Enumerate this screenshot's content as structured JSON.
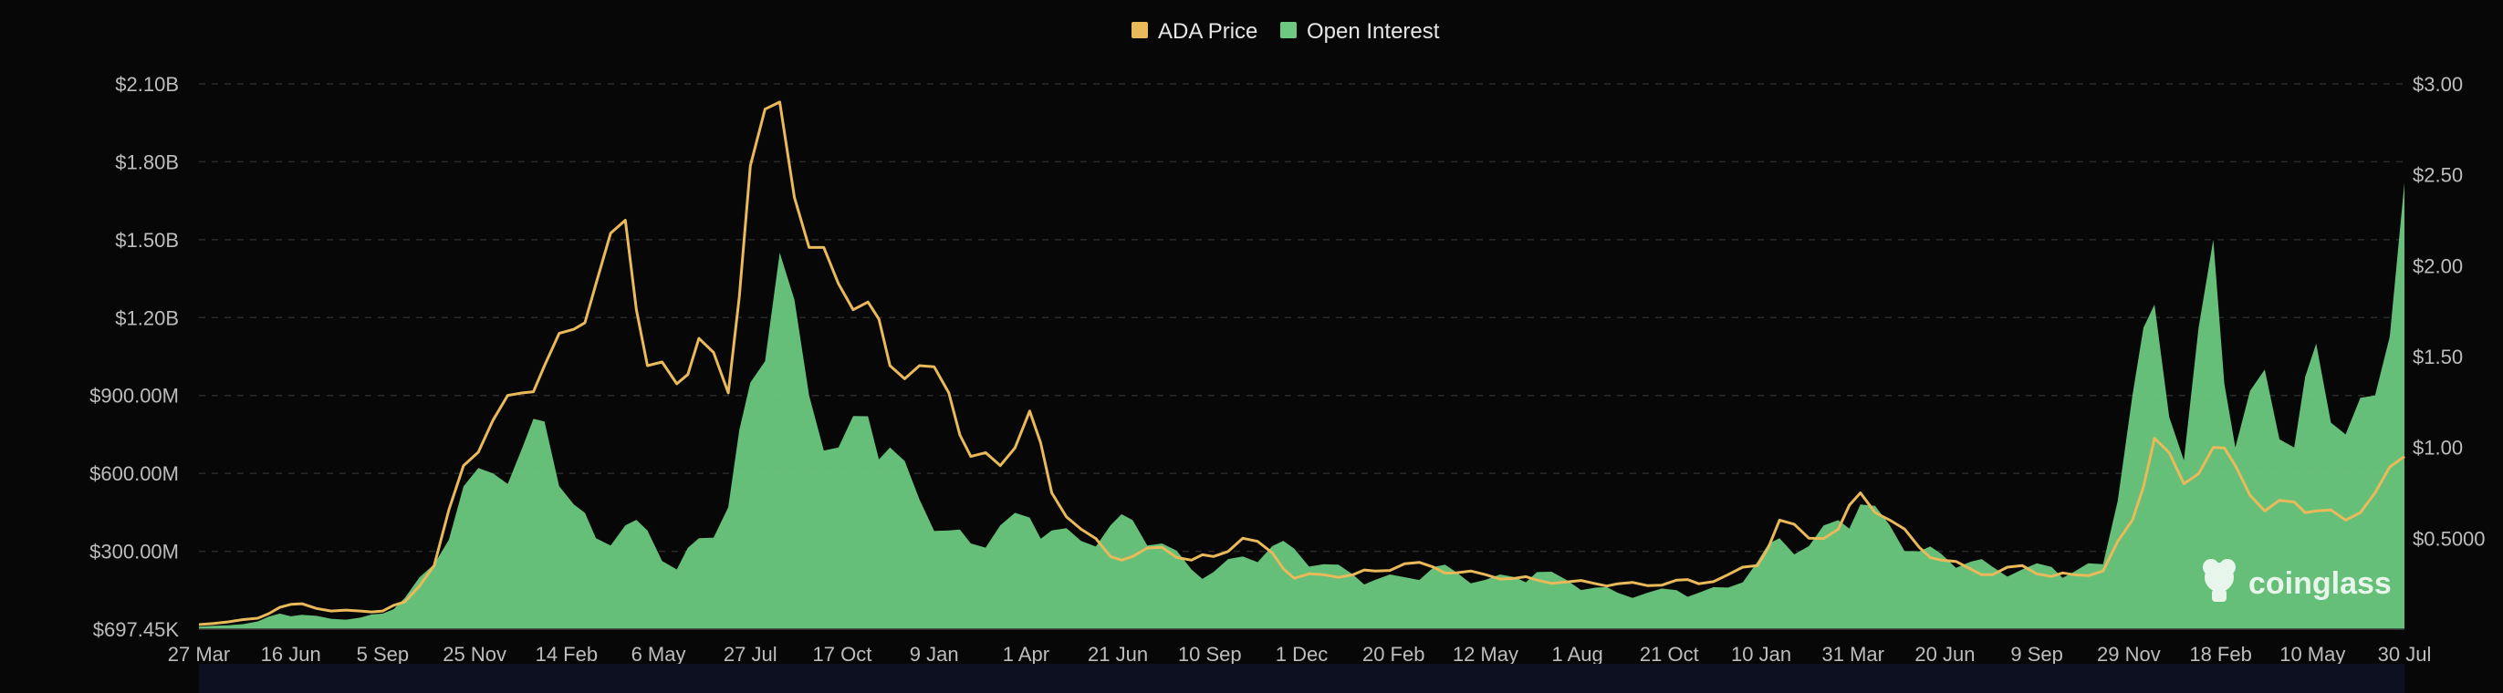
{
  "chart_data": {
    "type": "area",
    "title": "",
    "legend": {
      "placement": "top-center",
      "items": [
        {
          "label": "ADA Price",
          "color": "#e9b95a"
        },
        {
          "label": "Open Interest",
          "color": "#6cc97f"
        }
      ]
    },
    "x_tick_labels": [
      "27 Mar",
      "16 Jun",
      "5 Sep",
      "25 Nov",
      "14 Feb",
      "6 May",
      "27 Jul",
      "17 Oct",
      "9 Jan",
      "1 Apr",
      "21 Jun",
      "10 Sep",
      "1 Dec",
      "20 Feb",
      "12 May",
      "1 Aug",
      "21 Oct",
      "10 Jan",
      "31 Mar",
      "20 Jun",
      "9 Sep",
      "29 Nov",
      "18 Feb",
      "10 May",
      "30 Jul"
    ],
    "y_left": {
      "tick_labels": [
        "$697.45K",
        "$300.00M",
        "$600.00M",
        "$900.00M",
        "$1.20B",
        "$1.50B",
        "$1.80B",
        "$2.10B"
      ],
      "ylim": [
        0,
        2100
      ]
    },
    "y_right": {
      "tick_labels": [
        "$0.5000",
        "$1.00",
        "$1.50",
        "$2.00",
        "$2.50",
        "$3.00"
      ],
      "ylim": [
        0,
        3.0
      ]
    },
    "x_index": [
      0,
      4,
      8,
      11,
      14,
      18,
      22,
      25,
      28,
      32,
      36,
      40,
      44,
      47,
      51,
      54,
      58,
      61,
      65,
      68,
      72,
      75,
      79,
      83,
      87,
      91,
      94,
      98,
      102,
      105,
      109,
      113,
      116,
      120,
      124,
      127,
      131,
      135,
      138,
      142,
      146,
      149,
      153,
      157,
      160,
      164,
      168,
      171,
      175,
      179,
      182,
      186,
      190,
      193,
      197,
      201,
      204,
      208,
      212,
      215,
      219,
      223,
      226,
      230,
      234,
      237,
      241,
      244,
      248,
      252,
      255,
      259,
      263,
      266,
      270,
      274,
      277,
      281,
      285,
      288,
      292,
      296,
      300
    ],
    "series": [
      {
        "name": "Open Interest",
        "axis": "left",
        "unit": "M USD",
        "values": [
          10,
          15,
          30,
          60,
          55,
          40,
          45,
          60,
          120,
          250,
          550,
          600,
          700,
          800,
          480,
          350,
          400,
          380,
          230,
          350,
          470,
          950,
          1450,
          900,
          700,
          820,
          700,
          500,
          380,
          330,
          400,
          430,
          380,
          340,
          400,
          420,
          330,
          230,
          220,
          280,
          320,
          310,
          250,
          210,
          190,
          200,
          240,
          220,
          190,
          200,
          220,
          190,
          160,
          140,
          140,
          150,
          140,
          160,
          260,
          350,
          320,
          420,
          480,
          400,
          300,
          290,
          260,
          240,
          230,
          240,
          220,
          250,
          900,
          1250,
          650,
          1500,
          700,
          1000,
          700,
          1100,
          750,
          900,
          1720
        ]
      },
      {
        "name": "ADA Price",
        "axis": "right",
        "unit": "USD",
        "values": [
          0.025,
          0.04,
          0.06,
          0.12,
          0.14,
          0.1,
          0.1,
          0.1,
          0.15,
          0.35,
          0.9,
          1.15,
          1.3,
          1.45,
          1.65,
          1.9,
          2.25,
          1.45,
          1.35,
          1.6,
          1.3,
          2.55,
          2.9,
          2.1,
          1.9,
          1.8,
          1.45,
          1.45,
          1.3,
          0.95,
          0.9,
          1.2,
          0.75,
          0.55,
          0.4,
          0.4,
          0.45,
          0.38,
          0.4,
          0.5,
          0.42,
          0.28,
          0.3,
          0.3,
          0.32,
          0.36,
          0.34,
          0.31,
          0.3,
          0.28,
          0.27,
          0.26,
          0.25,
          0.25,
          0.24,
          0.27,
          0.25,
          0.3,
          0.35,
          0.6,
          0.5,
          0.55,
          0.75,
          0.6,
          0.45,
          0.38,
          0.33,
          0.3,
          0.35,
          0.29,
          0.3,
          0.32,
          0.6,
          1.05,
          0.8,
          1.0,
          0.9,
          0.65,
          0.7,
          0.65,
          0.6,
          0.75,
          0.95
        ]
      }
    ],
    "grid": true
  },
  "watermark": {
    "text": "coinglass",
    "icon": "coinglass-logo-icon"
  }
}
